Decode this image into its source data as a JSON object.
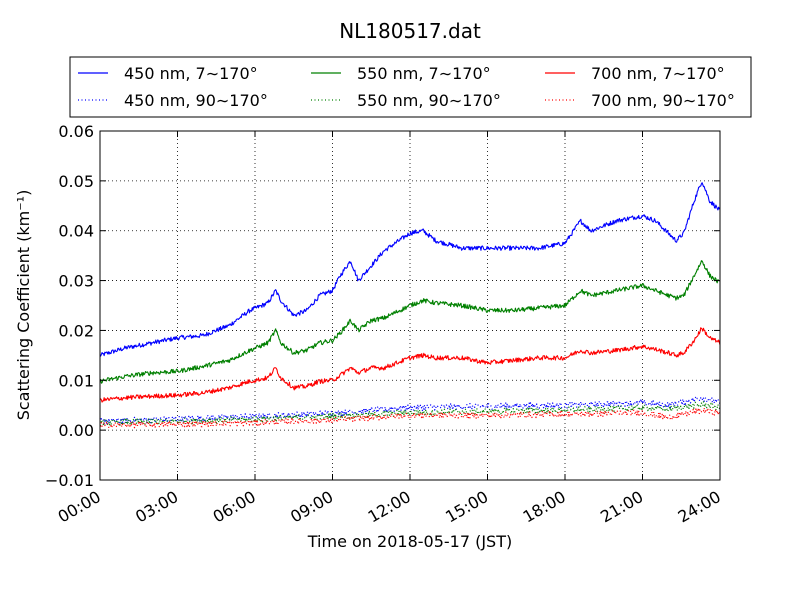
{
  "chart_data": {
    "type": "line",
    "title": "NL180517.dat",
    "xlabel": "Time on 2018-05-17 (JST)",
    "ylabel": "Scattering Coefficient (km⁻¹)",
    "x_unit": "hours",
    "xlim": [
      0,
      24
    ],
    "ylim": [
      -0.01,
      0.06
    ],
    "x_ticks": [
      0,
      3,
      6,
      9,
      12,
      15,
      18,
      21,
      24
    ],
    "x_tick_labels": [
      "00:00",
      "03:00",
      "06:00",
      "09:00",
      "12:00",
      "15:00",
      "18:00",
      "21:00",
      "24:00"
    ],
    "y_ticks": [
      -0.01,
      0.0,
      0.01,
      0.02,
      0.03,
      0.04,
      0.05,
      0.06
    ],
    "y_tick_labels": [
      "−0.01",
      "0.00",
      "0.01",
      "0.02",
      "0.03",
      "0.04",
      "0.05",
      "0.06"
    ],
    "grid": true,
    "legend_position": "top",
    "series": [
      {
        "name": "450 nm, 7∼170°",
        "color": "#0000ff",
        "style": "solid",
        "x": [
          0,
          1,
          2,
          3,
          4,
          5,
          5.8,
          6.5,
          6.8,
          7.0,
          7.5,
          8.0,
          8.5,
          9.0,
          9.3,
          9.7,
          10.0,
          10.5,
          11.0,
          12.0,
          12.5,
          13.0,
          14.0,
          15.0,
          16.0,
          17.0,
          18.0,
          18.6,
          19.0,
          20.0,
          21.0,
          21.5,
          22.0,
          22.3,
          22.6,
          23.0,
          23.3,
          23.6,
          24.0
        ],
        "y": [
          0.015,
          0.0165,
          0.0175,
          0.0185,
          0.019,
          0.021,
          0.024,
          0.0255,
          0.028,
          0.026,
          0.023,
          0.024,
          0.027,
          0.028,
          0.031,
          0.034,
          0.03,
          0.033,
          0.036,
          0.0395,
          0.04,
          0.038,
          0.0365,
          0.0365,
          0.0365,
          0.0365,
          0.0375,
          0.042,
          0.04,
          0.042,
          0.043,
          0.042,
          0.0395,
          0.038,
          0.0395,
          0.046,
          0.05,
          0.046,
          0.044
        ]
      },
      {
        "name": "450 nm, 90∼170°",
        "color": "#0000ff",
        "style": "dotted",
        "x": [
          0,
          3,
          6,
          9,
          12,
          15,
          18,
          21,
          22,
          23.3,
          24
        ],
        "y": [
          0.0018,
          0.0022,
          0.0028,
          0.0034,
          0.0045,
          0.0048,
          0.005,
          0.0055,
          0.005,
          0.0065,
          0.0055
        ]
      },
      {
        "name": "550 nm, 7∼170°",
        "color": "#008000",
        "style": "solid",
        "x": [
          0,
          1,
          2,
          3,
          4,
          5,
          5.8,
          6.5,
          6.8,
          7.0,
          7.5,
          8.0,
          8.5,
          9.0,
          9.3,
          9.7,
          10.0,
          10.5,
          11.0,
          12.0,
          12.5,
          13.0,
          14.0,
          15.0,
          16.0,
          17.0,
          18.0,
          18.6,
          19.0,
          20.0,
          21.0,
          21.5,
          22.0,
          22.3,
          22.6,
          23.0,
          23.3,
          23.6,
          24.0
        ],
        "y": [
          0.0098,
          0.0108,
          0.0115,
          0.0118,
          0.0128,
          0.014,
          0.016,
          0.0175,
          0.02,
          0.0175,
          0.0155,
          0.016,
          0.0175,
          0.018,
          0.0195,
          0.022,
          0.02,
          0.022,
          0.0225,
          0.025,
          0.026,
          0.0255,
          0.025,
          0.024,
          0.024,
          0.0245,
          0.025,
          0.028,
          0.027,
          0.028,
          0.029,
          0.028,
          0.027,
          0.0265,
          0.027,
          0.031,
          0.034,
          0.031,
          0.0295
        ]
      },
      {
        "name": "550 nm, 90∼170°",
        "color": "#008000",
        "style": "dotted",
        "x": [
          0,
          3,
          6,
          9,
          12,
          15,
          18,
          21,
          22,
          23.3,
          24
        ],
        "y": [
          0.0015,
          0.0018,
          0.0022,
          0.0028,
          0.0035,
          0.0038,
          0.004,
          0.0045,
          0.0042,
          0.0052,
          0.0045
        ]
      },
      {
        "name": "700 nm, 7∼170°",
        "color": "#ff0000",
        "style": "solid",
        "x": [
          0,
          1,
          2,
          3,
          4,
          5,
          5.8,
          6.5,
          6.8,
          7.0,
          7.5,
          8.0,
          8.5,
          9.0,
          9.3,
          9.7,
          10.0,
          10.5,
          11.0,
          12.0,
          12.5,
          13.0,
          14.0,
          15.0,
          16.0,
          17.0,
          18.0,
          18.6,
          19.0,
          20.0,
          21.0,
          21.5,
          22.0,
          22.3,
          22.6,
          23.0,
          23.3,
          23.6,
          24.0
        ],
        "y": [
          0.006,
          0.0065,
          0.0068,
          0.007,
          0.0075,
          0.0085,
          0.0098,
          0.0105,
          0.0125,
          0.0105,
          0.0085,
          0.0088,
          0.0098,
          0.01,
          0.011,
          0.0125,
          0.0115,
          0.0125,
          0.0125,
          0.0145,
          0.015,
          0.0145,
          0.0145,
          0.0135,
          0.014,
          0.0145,
          0.0145,
          0.016,
          0.0155,
          0.016,
          0.0168,
          0.0162,
          0.0155,
          0.015,
          0.0155,
          0.018,
          0.0205,
          0.0185,
          0.0175
        ]
      },
      {
        "name": "700 nm, 90∼170°",
        "color": "#ff0000",
        "style": "dotted",
        "x": [
          0,
          3,
          6,
          9,
          12,
          15,
          18,
          21,
          22,
          23.3,
          24
        ],
        "y": [
          0.001,
          0.0012,
          0.0015,
          0.002,
          0.003,
          0.003,
          0.0032,
          0.0035,
          0.0025,
          0.004,
          0.0035
        ]
      }
    ]
  }
}
